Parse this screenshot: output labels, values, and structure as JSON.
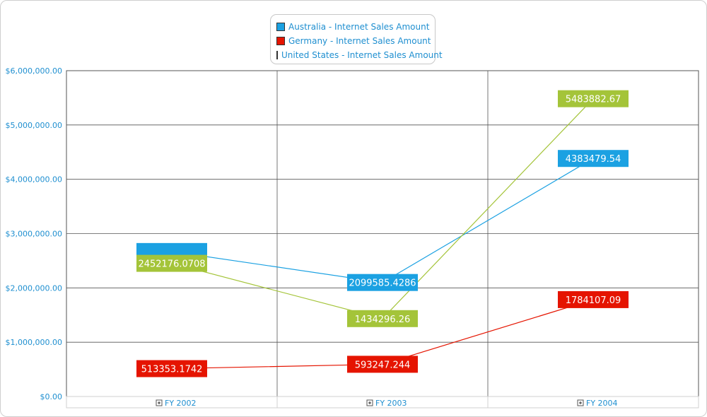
{
  "chart_data": {
    "type": "line",
    "categories": [
      "FY 2002",
      "FY 2003",
      "FY 2004"
    ],
    "series": [
      {
        "name": "Australia - Internet Sales Amount",
        "color": "#1ba1e2",
        "values": [
          2670000,
          2099585.4286,
          4383479.54
        ],
        "labels": [
          "",
          "2099585.4286",
          "4383479.54"
        ]
      },
      {
        "name": "Germany - Internet Sales Amount",
        "color": "#e51400",
        "values": [
          513353.1742,
          593247.244,
          1784107.09
        ],
        "labels": [
          "513353.1742",
          "593247.244",
          "1784107.09"
        ]
      },
      {
        "name": "United States - Internet Sales Amount",
        "color": "#a4c439",
        "values": [
          2452176.0708,
          1434296.26,
          5483882.67
        ],
        "labels": [
          "2452176.0708",
          "1434296.26",
          "5483882.67"
        ]
      }
    ],
    "y_ticks": [
      "$0.00",
      "$1,000,000.00",
      "$2,000,000.00",
      "$3,000,000.00",
      "$4,000,000.00",
      "$5,000,000.00",
      "$6,000,000.00"
    ],
    "ylim": [
      0,
      6000000
    ],
    "grid": true,
    "legend_position": "top-center",
    "expand_icon": "plus-box-icon"
  }
}
